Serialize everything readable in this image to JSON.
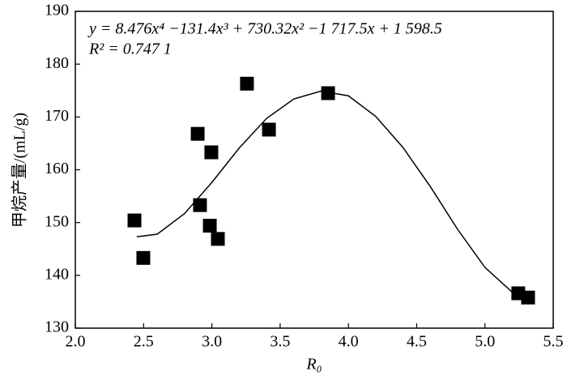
{
  "chart_data": {
    "type": "scatter",
    "equation": "y = 8.476x⁴ −131.4x³ + 730.32x² −1 717.5x + 1 598.5",
    "r_squared": "R² = 0.747 1",
    "xlabel": "R₀",
    "ylabel": "甲烷产量/(mL/g)",
    "x": [
      2.433,
      2.498,
      2.896,
      2.913,
      2.996,
      2.985,
      3.044,
      3.257,
      3.418,
      3.851,
      5.244,
      5.316
    ],
    "values": [
      150.4,
      143.3,
      166.8,
      153.3,
      163.3,
      149.4,
      146.9,
      176.3,
      167.6,
      174.5,
      136.6,
      135.8
    ],
    "color": "#000000",
    "fit": {
      "color": "#000000",
      "x": [
        2.45,
        2.6,
        2.8,
        3.0,
        3.2,
        3.4,
        3.6,
        3.8,
        4.0,
        4.2,
        4.4,
        4.6,
        4.8,
        5.0,
        5.2,
        5.3
      ],
      "values": [
        147.3,
        147.8,
        151.7,
        157.6,
        164.1,
        169.7,
        173.4,
        174.9,
        174.0,
        170.1,
        164.2,
        156.8,
        148.7,
        141.5,
        136.8,
        136.1
      ]
    },
    "xlim": [
      2.0,
      5.5
    ],
    "xticks": [
      {
        "value": 2,
        "label": "2.0"
      },
      {
        "value": 2.5,
        "label": "2.5"
      },
      {
        "value": 3,
        "label": "3.0"
      },
      {
        "value": 3.5,
        "label": "3.5"
      },
      {
        "value": 4,
        "label": "4.0"
      },
      {
        "value": 4.5,
        "label": "4.5"
      },
      {
        "value": 5,
        "label": "5.0"
      },
      {
        "value": 5.5,
        "label": "5.5"
      }
    ],
    "ylim": [
      130,
      190
    ],
    "yticks": [
      130,
      140,
      150,
      160,
      170,
      180,
      190
    ],
    "grid": false
  }
}
